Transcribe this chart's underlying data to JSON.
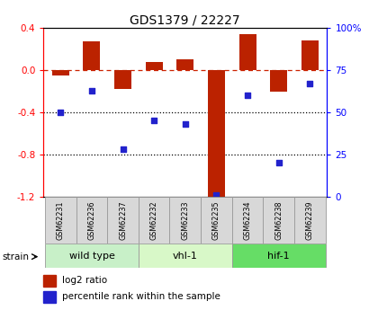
{
  "title": "GDS1379 / 22227",
  "samples": [
    "GSM62231",
    "GSM62236",
    "GSM62237",
    "GSM62232",
    "GSM62233",
    "GSM62235",
    "GSM62234",
    "GSM62238",
    "GSM62239"
  ],
  "log2_ratio": [
    -0.05,
    0.27,
    -0.18,
    0.08,
    0.1,
    -1.2,
    0.34,
    -0.2,
    0.28
  ],
  "percentile_rank": [
    50,
    63,
    28,
    45,
    43,
    1,
    60,
    20,
    67
  ],
  "groups": [
    {
      "label": "wild type",
      "start": 0,
      "end": 3,
      "color": "#c8f0c8"
    },
    {
      "label": "vhl-1",
      "start": 3,
      "end": 6,
      "color": "#d8f8c8"
    },
    {
      "label": "hif-1",
      "start": 6,
      "end": 9,
      "color": "#66dd66"
    }
  ],
  "ylim_left": [
    -1.2,
    0.4
  ],
  "ylim_right": [
    0,
    100
  ],
  "bar_color": "#bb2200",
  "dot_color": "#2222cc",
  "dashed_line_color": "#cc2200",
  "dotted_line_color": "#000000",
  "bg_color": "#ffffff",
  "plot_bg": "#ffffff",
  "left_ticks": [
    0.4,
    0.0,
    -0.4,
    -0.8,
    -1.2
  ],
  "left_tick_labels": [
    "0.4",
    "0.0",
    "-0.4",
    "-0.8",
    "-1.2"
  ],
  "right_ticks": [
    100,
    75,
    50,
    25,
    0
  ],
  "right_tick_labels": [
    "100%",
    "75",
    "50",
    "25",
    "0"
  ],
  "hlines_dotted": [
    -0.4,
    -0.8
  ],
  "strain_label": "strain",
  "legend_bar_label": "log2 ratio",
  "legend_dot_label": "percentile rank within the sample",
  "sample_box_color": "#d8d8d8",
  "strain_border_color": "#999999"
}
